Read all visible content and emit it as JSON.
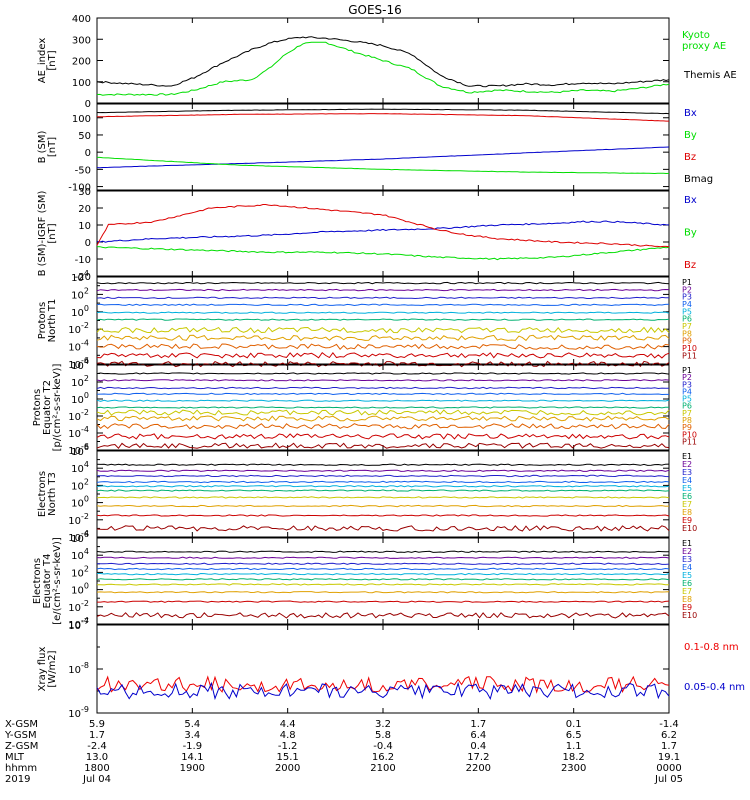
{
  "title": "GOES-16",
  "colors": {
    "black": "#000000",
    "green": "#00dd00",
    "red": "#dd0000",
    "blue": "#0000cc"
  },
  "ephemeris": {
    "rows": [
      {
        "label": "X-GSM",
        "values": [
          "5.9",
          "5.4",
          "4.4",
          "3.2",
          "1.7",
          "0.1",
          "-1.4"
        ]
      },
      {
        "label": "Y-GSM",
        "values": [
          "1.7",
          "3.4",
          "4.8",
          "5.8",
          "6.4",
          "6.5",
          "6.2"
        ]
      },
      {
        "label": "Z-GSM",
        "values": [
          "-2.4",
          "-1.9",
          "-1.2",
          "-0.4",
          "0.4",
          "1.1",
          "1.7"
        ]
      },
      {
        "label": "MLT",
        "values": [
          "13.0",
          "14.1",
          "15.1",
          "16.2",
          "17.2",
          "18.2",
          "19.1"
        ]
      },
      {
        "label": "hhmm",
        "values": [
          "1800",
          "1900",
          "2000",
          "2100",
          "2200",
          "2300",
          "0000"
        ]
      }
    ],
    "year": "2019",
    "start_date": "Jul 04",
    "end_date": "Jul 05"
  },
  "chart_data": [
    {
      "type": "line",
      "panel": "ae",
      "ylabel": "AE_index\n[nT]",
      "ylim": [
        0,
        400
      ],
      "yticks": [
        "0",
        "100",
        "200",
        "300",
        "400"
      ],
      "series": [
        {
          "name": "Kyoto\nproxy AE",
          "color": "#00dd00",
          "x": [
            0,
            0.06,
            0.13,
            0.17,
            0.22,
            0.27,
            0.3,
            0.33,
            0.36,
            0.4,
            0.45,
            0.5,
            0.55,
            0.6,
            0.65,
            0.7,
            0.75,
            0.8,
            0.85,
            0.9,
            0.95,
            1
          ],
          "y": [
            40,
            40,
            40,
            60,
            100,
            110,
            160,
            230,
            280,
            285,
            240,
            200,
            160,
            80,
            50,
            60,
            55,
            50,
            60,
            55,
            70,
            90
          ]
        },
        {
          "name": "Themis AE",
          "color": "#000000",
          "x": [
            0,
            0.06,
            0.13,
            0.17,
            0.22,
            0.27,
            0.3,
            0.33,
            0.36,
            0.4,
            0.45,
            0.5,
            0.55,
            0.6,
            0.65,
            0.7,
            0.75,
            0.8,
            0.85,
            0.9,
            0.95,
            1
          ],
          "y": [
            100,
            90,
            80,
            120,
            190,
            250,
            280,
            300,
            310,
            305,
            290,
            270,
            230,
            130,
            80,
            80,
            90,
            85,
            95,
            90,
            100,
            110
          ]
        }
      ]
    },
    {
      "type": "line",
      "panel": "bsm",
      "ylabel": "B (SM)\n[nT]",
      "ylim": [
        -110,
        140
      ],
      "yticks": [
        "-100",
        "-50",
        "0",
        "50",
        "100"
      ],
      "series": [
        {
          "name": "Bx",
          "color": "#0000cc",
          "x": [
            0,
            0.25,
            0.5,
            0.75,
            1
          ],
          "y": [
            -45,
            -33,
            -20,
            -2,
            15
          ]
        },
        {
          "name": "By",
          "color": "#00dd00",
          "x": [
            0,
            0.25,
            0.5,
            0.75,
            1
          ],
          "y": [
            -15,
            -38,
            -50,
            -58,
            -62
          ]
        },
        {
          "name": "Bz",
          "color": "#dd0000",
          "x": [
            0,
            0.25,
            0.5,
            0.75,
            1
          ],
          "y": [
            103,
            110,
            112,
            106,
            90
          ]
        },
        {
          "name": "Bmag",
          "color": "#000000",
          "x": [
            0,
            0.25,
            0.5,
            0.75,
            1
          ],
          "y": [
            115,
            122,
            125,
            122,
            112
          ]
        }
      ]
    },
    {
      "type": "line",
      "panel": "digrf",
      "ylabel": "B (SM)-IGRF (SM)\n[nT]",
      "ylim": [
        -20,
        30
      ],
      "yticks": [
        "-20",
        "-10",
        "0",
        "10",
        "20",
        "30"
      ],
      "series": [
        {
          "name": "Bx",
          "color": "#0000cc",
          "x": [
            0,
            0.1,
            0.2,
            0.3,
            0.4,
            0.5,
            0.6,
            0.7,
            0.8,
            0.85,
            0.9,
            1
          ],
          "y": [
            0,
            2,
            3,
            4,
            6,
            7,
            8,
            10,
            11,
            12,
            12,
            10
          ]
        },
        {
          "name": "By",
          "color": "#00dd00",
          "x": [
            0,
            0.1,
            0.2,
            0.3,
            0.4,
            0.5,
            0.6,
            0.7,
            0.8,
            0.9,
            1
          ],
          "y": [
            -3,
            -4,
            -5,
            -6,
            -6,
            -7,
            -9,
            -10,
            -9,
            -6,
            -3
          ]
        },
        {
          "name": "Bz",
          "color": "#dd0000",
          "x": [
            0,
            0.02,
            0.1,
            0.2,
            0.3,
            0.4,
            0.5,
            0.6,
            0.65,
            0.7,
            0.8,
            0.9,
            0.95,
            1
          ],
          "y": [
            -2,
            10,
            12,
            20,
            22,
            19,
            16,
            7,
            4,
            2,
            0,
            -1,
            -2,
            -3
          ]
        }
      ]
    },
    {
      "type": "line",
      "panel": "protons_t1",
      "ylabel": "Protons\nNorth T1",
      "scale": "log",
      "ylim_exp": [
        -6,
        4
      ],
      "yticks": [
        "10^-6",
        "10^-4",
        "10^-2",
        "10^0",
        "10^2",
        "10^4"
      ],
      "series": [
        {
          "name": "P1",
          "color": "#000000",
          "level": 3.3
        },
        {
          "name": "P2",
          "color": "#6a0096",
          "level": 2.5
        },
        {
          "name": "P3",
          "color": "#2020cc",
          "level": 1.6
        },
        {
          "name": "P4",
          "color": "#1060ee",
          "level": 0.8
        },
        {
          "name": "P5",
          "color": "#00b0dd",
          "level": -0.1
        },
        {
          "name": "P6",
          "color": "#00b070",
          "level": -0.9
        },
        {
          "name": "P7",
          "color": "#c8c800",
          "level": -2.1
        },
        {
          "name": "P8",
          "color": "#e0a000",
          "level": -3.0
        },
        {
          "name": "P9",
          "color": "#e06000",
          "level": -4.0
        },
        {
          "name": "P10",
          "color": "#cc0000",
          "level": -5.0
        },
        {
          "name": "P11",
          "color": "#990000",
          "level": -6.0
        }
      ]
    },
    {
      "type": "line",
      "panel": "protons_t2",
      "ylabel": "Protons\nEquator T2\n[p/(cm²-s-sr-keV)]",
      "scale": "log",
      "ylim_exp": [
        -6,
        4
      ],
      "yticks": [
        "10^-6",
        "10^-4",
        "10^-2",
        "10^0",
        "10^2",
        "10^4"
      ],
      "series": [
        {
          "name": "P1",
          "color": "#000000",
          "level": 3.0
        },
        {
          "name": "P2",
          "color": "#6a0096",
          "level": 2.2
        },
        {
          "name": "P3",
          "color": "#2020cc",
          "level": 1.3
        },
        {
          "name": "P4",
          "color": "#1060ee",
          "level": 0.6
        },
        {
          "name": "P5",
          "color": "#00b0dd",
          "level": -0.2
        },
        {
          "name": "P6",
          "color": "#00b070",
          "level": -1.0
        },
        {
          "name": "P7",
          "color": "#c8c800",
          "level": -1.6
        },
        {
          "name": "P8",
          "color": "#e0a000",
          "level": -2.3
        },
        {
          "name": "P9",
          "color": "#e06000",
          "level": -3.2
        },
        {
          "name": "P10",
          "color": "#cc0000",
          "level": -4.4
        },
        {
          "name": "P11",
          "color": "#990000",
          "level": -5.5
        }
      ]
    },
    {
      "type": "line",
      "panel": "electrons_t3",
      "ylabel": "Electrons\nNorth T3",
      "scale": "log",
      "ylim_exp": [
        -4,
        6
      ],
      "yticks": [
        "10^-4",
        "10^-2",
        "10^0",
        "10^2",
        "10^4",
        "10^6"
      ],
      "series": [
        {
          "name": "E1",
          "color": "#000000",
          "level": 4.4
        },
        {
          "name": "E2",
          "color": "#6a0096",
          "level": 3.7
        },
        {
          "name": "E3",
          "color": "#2020cc",
          "level": 3.1
        },
        {
          "name": "E4",
          "color": "#1060ee",
          "level": 2.4
        },
        {
          "name": "E5",
          "color": "#00b0dd",
          "level": 1.9
        },
        {
          "name": "E6",
          "color": "#00b070",
          "level": 1.4
        },
        {
          "name": "E7",
          "color": "#c8c800",
          "level": 0.6
        },
        {
          "name": "E8",
          "color": "#e0a000",
          "level": -0.4
        },
        {
          "name": "E9",
          "color": "#cc0000",
          "level": -1.5
        },
        {
          "name": "E10",
          "color": "#990000",
          "level": -3.0
        }
      ]
    },
    {
      "type": "line",
      "panel": "electrons_t4",
      "ylabel": "Electrons\nEquator T4\n[e/(cm²-s-sr-keV)]",
      "scale": "log",
      "ylim_exp": [
        -4,
        6
      ],
      "yticks": [
        "10^-4",
        "10^-2",
        "10^0",
        "10^2",
        "10^4",
        "10^6"
      ],
      "series": [
        {
          "name": "E1",
          "color": "#000000",
          "level": 4.4
        },
        {
          "name": "E2",
          "color": "#6a0096",
          "level": 3.7
        },
        {
          "name": "E3",
          "color": "#2020cc",
          "level": 3.0
        },
        {
          "name": "E4",
          "color": "#1060ee",
          "level": 2.4
        },
        {
          "name": "E5",
          "color": "#00b0dd",
          "level": 1.8
        },
        {
          "name": "E6",
          "color": "#00b070",
          "level": 1.2
        },
        {
          "name": "E7",
          "color": "#c8c800",
          "level": 0.6
        },
        {
          "name": "E8",
          "color": "#e0a000",
          "level": -0.3
        },
        {
          "name": "E9",
          "color": "#cc0000",
          "level": -1.4
        },
        {
          "name": "E10",
          "color": "#990000",
          "level": -3.0
        }
      ]
    },
    {
      "type": "line",
      "panel": "xray",
      "ylabel": "Xray flux\n[W/m2]",
      "scale": "log",
      "ylim_exp": [
        -9,
        -7
      ],
      "yticks": [
        "10^-9",
        "10^-8",
        "10^-7"
      ],
      "series": [
        {
          "name": "0.1-0.8 nm",
          "color": "#ee0000",
          "level": -8.35
        },
        {
          "name": "0.05-0.4 nm",
          "color": "#0000cc",
          "level": -8.5
        }
      ]
    }
  ]
}
